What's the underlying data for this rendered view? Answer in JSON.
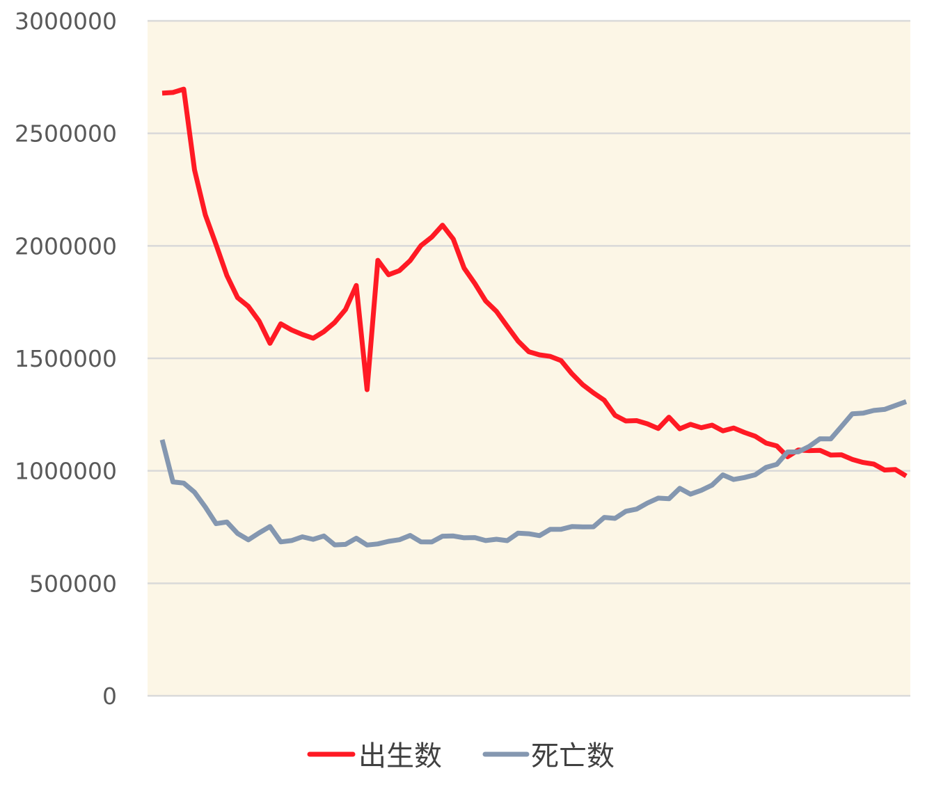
{
  "chart_data": {
    "type": "line",
    "title": "",
    "xlabel": "",
    "ylabel": "",
    "ylim": [
      0,
      3000000
    ],
    "yticks": [
      "0",
      "500000",
      "1000000",
      "1500000",
      "2000000",
      "2500000",
      "3000000"
    ],
    "grid": true,
    "legend_position": "bottom",
    "plot_background": "#fcf6e6",
    "series": [
      {
        "name": "出生数",
        "color": "#ff1a24",
        "values": [
          2678792,
          2681624,
          2696638,
          2337507,
          2137689,
          2005162,
          1868040,
          1769580,
          1730692,
          1665278,
          1566713,
          1653469,
          1626088,
          1606041,
          1589372,
          1618616,
          1659521,
          1716761,
          1823697,
          1360974,
          1935647,
          1871839,
          1889815,
          1934239,
          2000973,
          2038682,
          2091983,
          2029989,
          1901440,
          1832617,
          1755100,
          1708643,
          1642580,
          1576889,
          1529455,
          1515392,
          1508687,
          1489780,
          1431577,
          1382946,
          1346658,
          1314006,
          1246802,
          1221585,
          1223245,
          1208989,
          1188282,
          1238328,
          1187064,
          1206555,
          1191665,
          1203147,
          1177669,
          1190547,
          1170662,
          1153855,
          1123610,
          1110721,
          1062530,
          1092674,
          1089818,
          1091156,
          1070035,
          1071304,
          1050806,
          1037231,
          1029816,
          1003539,
          1005677,
          976978
        ]
      },
      {
        "name": "死亡数",
        "color": "#8497b0",
        "values": [
          1138238,
          950610,
          945444,
          904876,
          838998,
          765068,
          772547,
          721491,
          693523,
          724460,
          752445,
          684189,
          689959,
          706599,
          695644,
          710265,
          670770,
          673067,
          700438,
          670342,
          675006,
          686555,
          693787,
          712962,
          684521,
          683751,
          709416,
          710510,
          702275,
          703270,
          690074,
          695821,
          689664,
          722801,
          720262,
          711883,
          740038,
          740247,
          752283,
          750620,
          751172,
          793014,
          788594,
          820305,
          829797,
          856643,
          878532,
          875933,
          922139,
          896211,
          913402,
          936484,
          982031,
          961653,
          970331,
          982379,
          1014951,
          1028602,
          1083796,
          1084450,
          1108334,
          1142407,
          1141865,
          1197012,
          1253066,
          1256359,
          1268436,
          1273004,
          1290444,
          1307748
        ]
      }
    ]
  }
}
